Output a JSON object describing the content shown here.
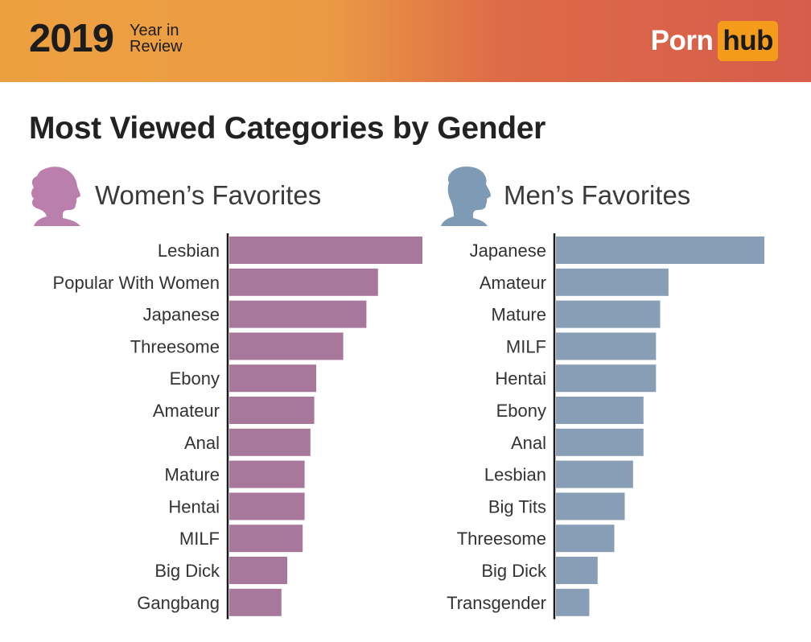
{
  "header": {
    "year": "2019",
    "subtitle_line1": "Year in",
    "subtitle_line2": "Review",
    "logo_left": "Porn",
    "logo_right": "hub"
  },
  "title": "Most Viewed Categories by Gender",
  "colors": {
    "women": "#a8779c",
    "men": "#889db6",
    "women_icon": "#ba7fac",
    "men_icon": "#7e9bb6"
  },
  "chart_data": [
    {
      "type": "bar",
      "orientation": "horizontal",
      "title": "Women’s Favorites",
      "icon": "woman-silhouette-icon",
      "categories": [
        "Lesbian",
        "Popular With Women",
        "Japanese",
        "Threesome",
        "Ebony",
        "Amateur",
        "Anal",
        "Mature",
        "Hentai",
        "MILF",
        "Big Dick",
        "Gangbang"
      ],
      "values": [
        100,
        77,
        71,
        59,
        45,
        44,
        42,
        39,
        39,
        38,
        30,
        27
      ],
      "xlim": [
        0,
        100
      ],
      "grid": false,
      "legend": "none"
    },
    {
      "type": "bar",
      "orientation": "horizontal",
      "title": "Men’s Favorites",
      "icon": "man-silhouette-icon",
      "categories": [
        "Japanese",
        "Amateur",
        "Mature",
        "MILF",
        "Hentai",
        "Ebony",
        "Anal",
        "Lesbian",
        "Big Tits",
        "Threesome",
        "Big Dick",
        "Transgender"
      ],
      "values": [
        100,
        54,
        50,
        48,
        48,
        42,
        42,
        37,
        33,
        28,
        20,
        16
      ],
      "xlim": [
        0,
        100
      ],
      "grid": false,
      "legend": "none"
    }
  ]
}
